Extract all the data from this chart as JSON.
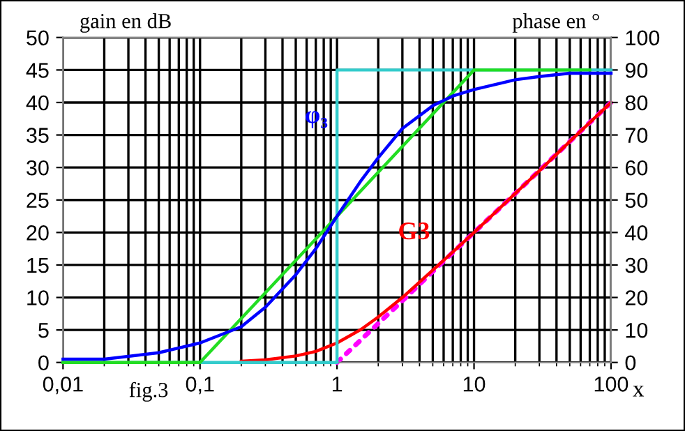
{
  "chart_data": {
    "type": "line",
    "xlabel": "x",
    "ylabel": "gain en dB",
    "y2label": "phase en °",
    "annotations": [
      "fig.3"
    ],
    "log": "x",
    "grid": true,
    "legend": false,
    "xlim": [
      0.01,
      100
    ],
    "xticks": [
      {
        "value": 0.01,
        "label": "0,01"
      },
      {
        "value": 0.1,
        "label": "0,1"
      },
      1,
      10,
      100
    ],
    "ylim": [
      0,
      50
    ],
    "yticks": [
      0,
      5,
      10,
      15,
      20,
      25,
      30,
      35,
      40,
      45,
      50
    ],
    "y2lim": [
      0,
      100
    ],
    "y2ticks": [
      0,
      10,
      20,
      30,
      40,
      50,
      60,
      70,
      80,
      90,
      100
    ],
    "series": [
      {
        "name": "φ₃",
        "color": "#0000ff",
        "axis": "y2",
        "x": [
          0.01,
          0.02,
          0.05,
          0.1,
          0.2,
          0.3,
          0.5,
          0.7,
          1,
          1.5,
          2,
          3,
          5,
          7,
          10,
          20,
          30,
          50,
          100
        ],
        "values": [
          1,
          1,
          3,
          6,
          11,
          17,
          27,
          35,
          45,
          56,
          63,
          72,
          79,
          82,
          84,
          87,
          88,
          89,
          89
        ]
      },
      {
        "color": "#22dd22",
        "axis": "y2",
        "x": [
          0.01,
          0.1,
          10,
          70
        ],
        "values": [
          0,
          0,
          90,
          90
        ]
      },
      {
        "color": "#33cccc",
        "axis": "y2",
        "x": [
          0.01,
          1,
          1,
          100
        ],
        "values": [
          0,
          0,
          90,
          90
        ]
      },
      {
        "name": "G3",
        "color": "#ff0000",
        "x": [
          0.2,
          0.3,
          0.5,
          0.7,
          1,
          1.5,
          2,
          3,
          5,
          7,
          10,
          20,
          30,
          50,
          100
        ],
        "values": [
          0.2,
          0.4,
          1,
          1.7,
          3,
          5.1,
          7,
          10,
          14.2,
          17,
          20,
          26,
          29.5,
          34,
          40
        ]
      },
      {
        "color": "#ff00ff",
        "line_style": "dotted",
        "x": [
          1,
          2,
          3,
          5,
          10,
          20,
          50,
          100
        ],
        "values": [
          0,
          6,
          9.5,
          14,
          20,
          26,
          34,
          40
        ]
      }
    ]
  }
}
